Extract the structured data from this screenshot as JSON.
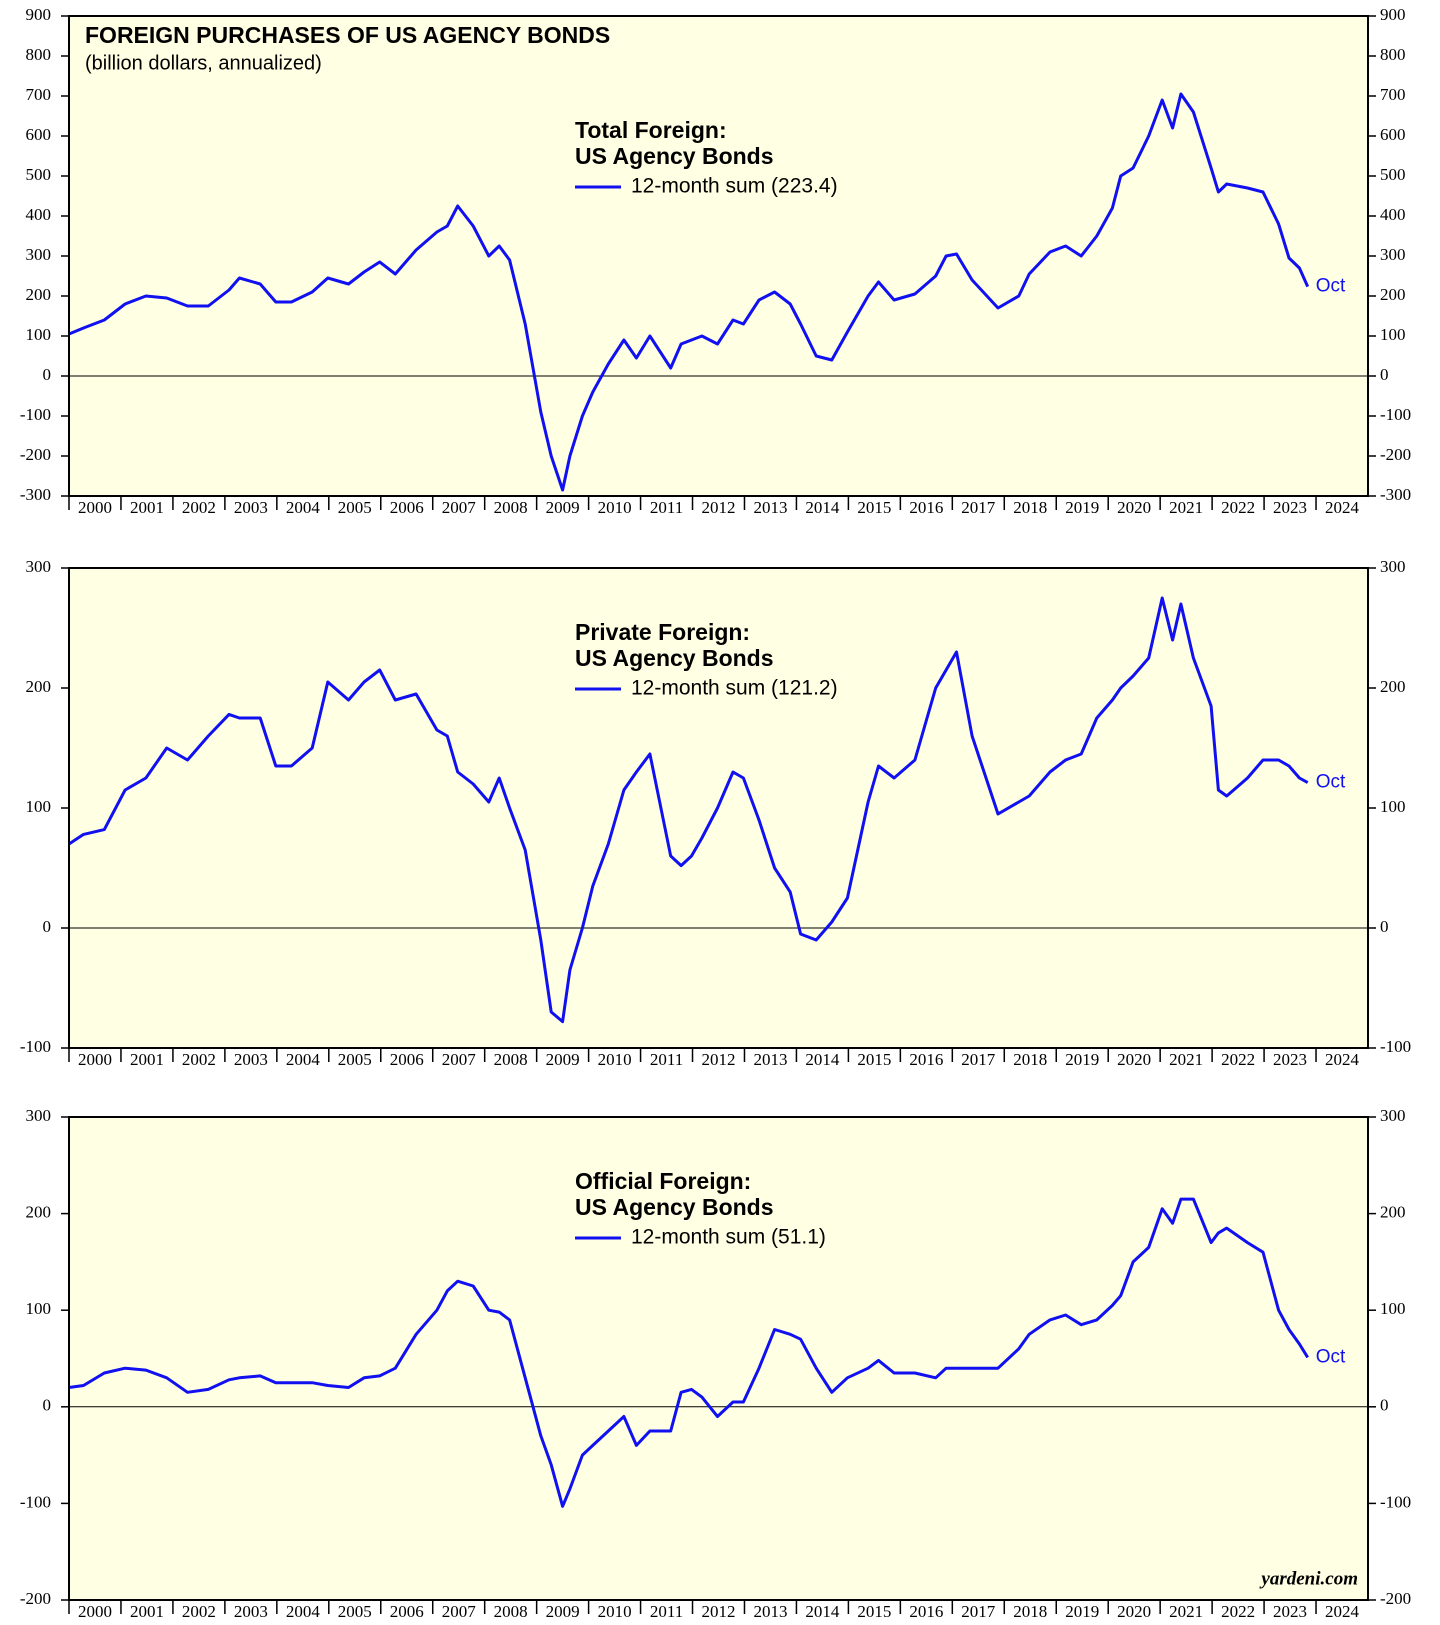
{
  "chart_data": [
    {
      "type": "line",
      "title": "FOREIGN PURCHASES OF US AGENCY BONDS",
      "subtitle": "(billion dollars, annualized)",
      "heading": [
        "Total Foreign:",
        "US Agency Bonds"
      ],
      "end_label": "Oct",
      "x": [
        2000.0,
        2000.28,
        2000.68,
        2001.08,
        2001.48,
        2001.88,
        2002.28,
        2002.68,
        2003.08,
        2003.28,
        2003.68,
        2003.98,
        2004.28,
        2004.68,
        2004.98,
        2005.38,
        2005.68,
        2005.98,
        2006.28,
        2006.68,
        2007.08,
        2007.28,
        2007.48,
        2007.78,
        2008.08,
        2008.28,
        2008.48,
        2008.78,
        2009.08,
        2009.28,
        2009.5,
        2009.64,
        2009.88,
        2010.08,
        2010.38,
        2010.68,
        2010.92,
        2011.18,
        2011.58,
        2011.78,
        2011.98,
        2012.18,
        2012.48,
        2012.78,
        2012.98,
        2013.28,
        2013.58,
        2013.88,
        2014.08,
        2014.38,
        2014.68,
        2014.98,
        2015.38,
        2015.58,
        2015.88,
        2016.28,
        2016.68,
        2016.88,
        2017.08,
        2017.38,
        2017.88,
        2018.28,
        2018.48,
        2018.88,
        2019.18,
        2019.48,
        2019.78,
        2020.08,
        2020.24,
        2020.48,
        2020.78,
        2021.04,
        2021.24,
        2021.4,
        2021.64,
        2021.98,
        2022.12,
        2022.28,
        2022.68,
        2022.98,
        2023.28,
        2023.48,
        2023.68,
        2023.84
      ],
      "series": [
        {
          "name": "12-month sum (223.4)",
          "color": "#1010f0",
          "values": [
            105,
            120,
            140,
            180,
            200,
            195,
            175,
            175,
            215,
            245,
            230,
            185,
            185,
            210,
            245,
            230,
            260,
            285,
            255,
            315,
            360,
            375,
            425,
            375,
            300,
            325,
            290,
            130,
            -90,
            -200,
            -285,
            -200,
            -100,
            -40,
            30,
            90,
            45,
            100,
            20,
            80,
            90,
            100,
            80,
            140,
            130,
            190,
            210,
            180,
            130,
            50,
            40,
            110,
            200,
            235,
            190,
            205,
            250,
            300,
            305,
            240,
            170,
            200,
            255,
            310,
            325,
            300,
            350,
            420,
            500,
            520,
            600,
            690,
            620,
            705,
            660,
            520,
            460,
            480,
            470,
            460,
            380,
            295,
            270,
            223.4
          ]
        }
      ],
      "xlim": [
        2000,
        2025
      ],
      "xticks": [
        2000,
        2001,
        2002,
        2003,
        2004,
        2005,
        2006,
        2007,
        2008,
        2009,
        2010,
        2011,
        2012,
        2013,
        2014,
        2015,
        2016,
        2017,
        2018,
        2019,
        2020,
        2021,
        2022,
        2023,
        2024
      ],
      "ylim": [
        -300,
        900
      ],
      "yticks": [
        -300,
        -200,
        -100,
        0,
        100,
        200,
        300,
        400,
        500,
        600,
        700,
        800,
        900
      ]
    },
    {
      "type": "line",
      "heading": [
        "Private Foreign:",
        "US Agency Bonds"
      ],
      "end_label": "Oct",
      "x": [
        2000.0,
        2000.28,
        2000.68,
        2001.08,
        2001.48,
        2001.88,
        2002.28,
        2002.68,
        2003.08,
        2003.28,
        2003.68,
        2003.98,
        2004.28,
        2004.68,
        2004.98,
        2005.38,
        2005.68,
        2005.98,
        2006.28,
        2006.68,
        2007.08,
        2007.28,
        2007.48,
        2007.78,
        2008.08,
        2008.28,
        2008.48,
        2008.78,
        2009.08,
        2009.28,
        2009.5,
        2009.64,
        2009.88,
        2010.08,
        2010.38,
        2010.68,
        2010.92,
        2011.18,
        2011.58,
        2011.78,
        2011.98,
        2012.18,
        2012.48,
        2012.78,
        2012.98,
        2013.28,
        2013.58,
        2013.88,
        2014.08,
        2014.38,
        2014.68,
        2014.98,
        2015.38,
        2015.58,
        2015.88,
        2016.28,
        2016.68,
        2016.88,
        2017.08,
        2017.38,
        2017.88,
        2018.28,
        2018.48,
        2018.88,
        2019.18,
        2019.48,
        2019.78,
        2020.08,
        2020.24,
        2020.48,
        2020.78,
        2021.04,
        2021.24,
        2021.4,
        2021.64,
        2021.98,
        2022.12,
        2022.28,
        2022.68,
        2022.98,
        2023.28,
        2023.48,
        2023.68,
        2023.84
      ],
      "series": [
        {
          "name": "12-month sum (121.2)",
          "color": "#1010f0",
          "values": [
            70,
            78,
            82,
            115,
            125,
            150,
            140,
            160,
            178,
            175,
            175,
            135,
            135,
            150,
            205,
            190,
            205,
            215,
            190,
            195,
            165,
            160,
            130,
            120,
            105,
            125,
            100,
            65,
            -10,
            -70,
            -78,
            -35,
            0,
            35,
            70,
            115,
            130,
            145,
            60,
            52,
            60,
            75,
            100,
            130,
            125,
            90,
            50,
            30,
            -5,
            -10,
            5,
            25,
            105,
            135,
            125,
            140,
            200,
            215,
            230,
            160,
            95,
            105,
            110,
            130,
            140,
            145,
            175,
            190,
            200,
            210,
            225,
            275,
            240,
            270,
            225,
            185,
            115,
            110,
            125,
            140,
            140,
            135,
            125,
            121.2
          ]
        }
      ],
      "xlim": [
        2000,
        2025
      ],
      "xticks": [
        2000,
        2001,
        2002,
        2003,
        2004,
        2005,
        2006,
        2007,
        2008,
        2009,
        2010,
        2011,
        2012,
        2013,
        2014,
        2015,
        2016,
        2017,
        2018,
        2019,
        2020,
        2021,
        2022,
        2023,
        2024
      ],
      "ylim": [
        -100,
        300
      ],
      "yticks": [
        -100,
        0,
        100,
        200,
        300
      ]
    },
    {
      "type": "line",
      "heading": [
        "Official Foreign:",
        "US Agency Bonds"
      ],
      "end_label": "Oct",
      "source": "yardeni.com",
      "x": [
        2000.0,
        2000.28,
        2000.68,
        2001.08,
        2001.48,
        2001.88,
        2002.28,
        2002.68,
        2003.08,
        2003.28,
        2003.68,
        2003.98,
        2004.28,
        2004.68,
        2004.98,
        2005.38,
        2005.68,
        2005.98,
        2006.28,
        2006.68,
        2007.08,
        2007.28,
        2007.48,
        2007.78,
        2008.08,
        2008.28,
        2008.48,
        2008.78,
        2009.08,
        2009.28,
        2009.5,
        2009.64,
        2009.88,
        2010.08,
        2010.38,
        2010.68,
        2010.92,
        2011.18,
        2011.58,
        2011.78,
        2011.98,
        2012.18,
        2012.48,
        2012.78,
        2012.98,
        2013.28,
        2013.58,
        2013.88,
        2014.08,
        2014.38,
        2014.68,
        2014.98,
        2015.38,
        2015.58,
        2015.88,
        2016.28,
        2016.68,
        2016.88,
        2017.08,
        2017.38,
        2017.88,
        2018.28,
        2018.48,
        2018.88,
        2019.18,
        2019.48,
        2019.78,
        2020.08,
        2020.24,
        2020.48,
        2020.78,
        2021.04,
        2021.24,
        2021.4,
        2021.64,
        2021.98,
        2022.12,
        2022.28,
        2022.68,
        2022.98,
        2023.28,
        2023.48,
        2023.68,
        2023.84
      ],
      "series": [
        {
          "name": "12-month sum (51.1)",
          "color": "#1010f0",
          "values": [
            20,
            22,
            35,
            40,
            38,
            30,
            15,
            18,
            28,
            30,
            32,
            25,
            25,
            25,
            22,
            20,
            30,
            32,
            40,
            75,
            100,
            120,
            130,
            125,
            100,
            98,
            90,
            30,
            -30,
            -60,
            -103,
            -85,
            -50,
            -40,
            -25,
            -10,
            -40,
            -25,
            -25,
            15,
            18,
            10,
            -10,
            5,
            5,
            40,
            80,
            75,
            70,
            40,
            15,
            30,
            40,
            48,
            35,
            35,
            30,
            40,
            40,
            40,
            40,
            60,
            75,
            90,
            95,
            85,
            90,
            105,
            115,
            150,
            165,
            205,
            190,
            215,
            215,
            170,
            180,
            185,
            170,
            160,
            100,
            80,
            65,
            51.1
          ]
        }
      ],
      "xlim": [
        2000,
        2025
      ],
      "xticks": [
        2000,
        2001,
        2002,
        2003,
        2004,
        2005,
        2006,
        2007,
        2008,
        2009,
        2010,
        2011,
        2012,
        2013,
        2014,
        2015,
        2016,
        2017,
        2018,
        2019,
        2020,
        2021,
        2022,
        2023,
        2024
      ],
      "ylim": [
        -200,
        300
      ],
      "yticks": [
        -200,
        -100,
        0,
        100,
        200,
        300
      ]
    }
  ]
}
